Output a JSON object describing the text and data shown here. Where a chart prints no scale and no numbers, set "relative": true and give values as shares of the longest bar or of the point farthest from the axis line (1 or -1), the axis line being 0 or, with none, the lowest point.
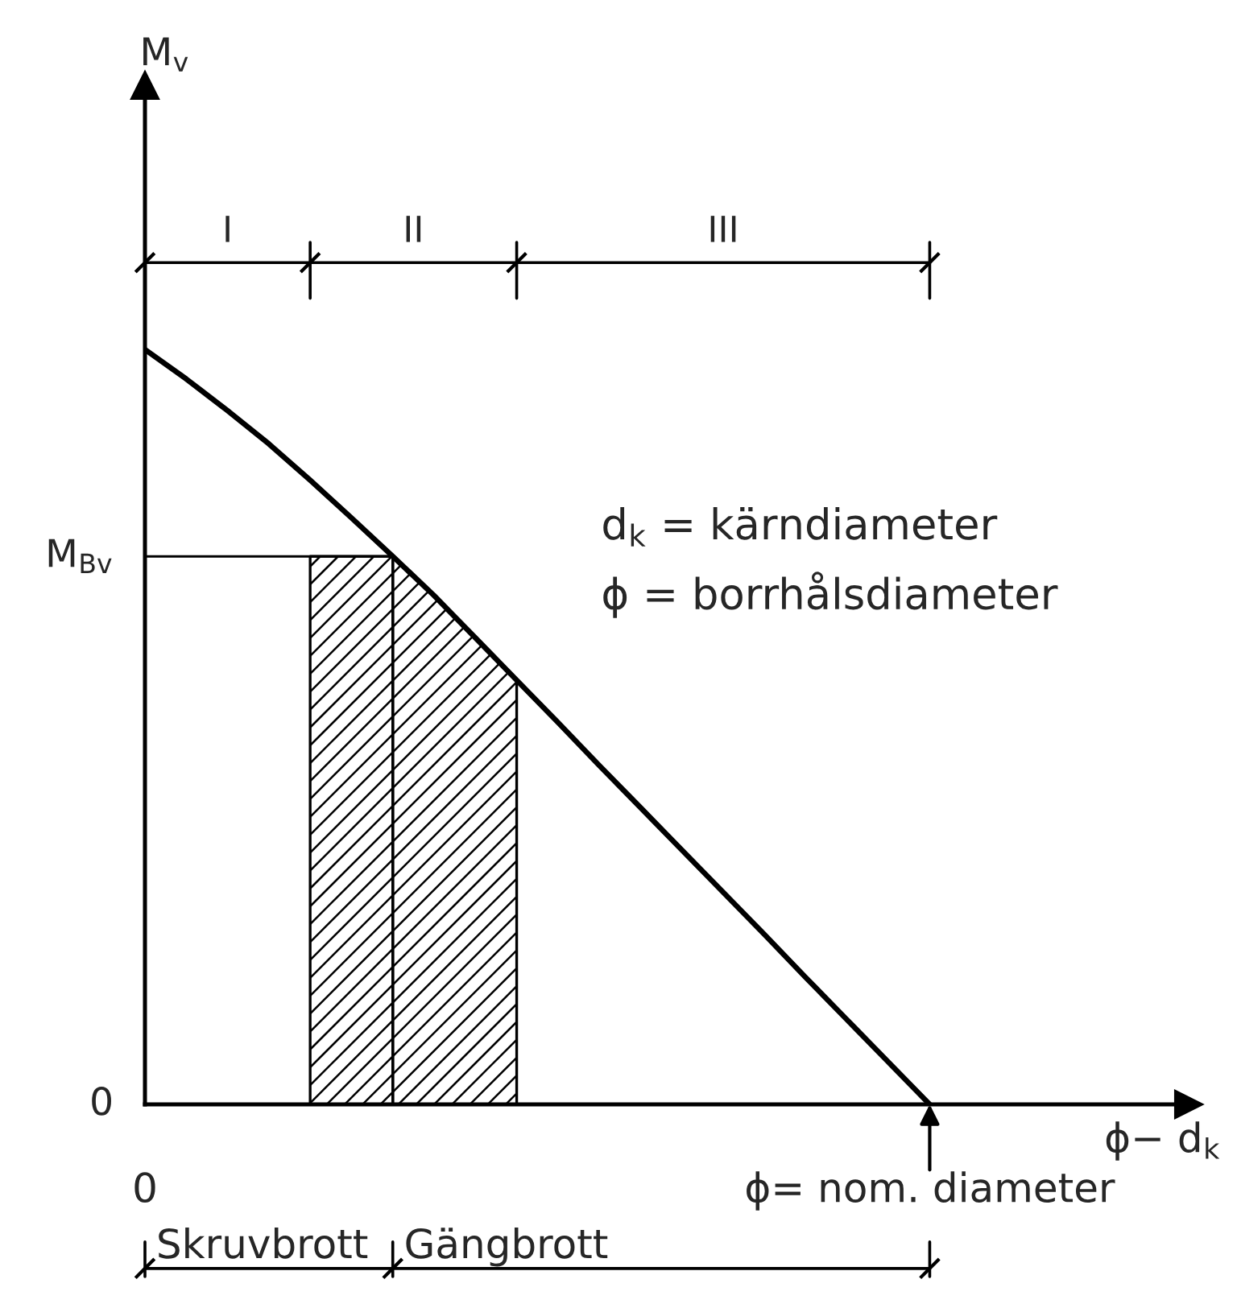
{
  "chart_data": {
    "type": "line",
    "relative": true,
    "xlabel": "ϕ− d$_{k}$",
    "categories": [
      "0",
      null,
      null,
      null,
      null,
      null,
      null,
      null,
      null,
      null,
      null,
      null,
      null,
      null,
      null,
      null,
      null,
      null,
      null,
      "ϕ= nom. diameter"
    ],
    "series": [
      {
        "type": "area",
        "color": "#000000",
        "values": [
          null,
          null,
          null,
          null,
          0.726,
          0.726,
          0.726,
          null,
          null,
          null,
          null,
          null,
          null,
          null,
          null,
          null,
          null,
          null,
          null,
          null
        ]
      },
      {
        "type": "area",
        "color": "#000000",
        "values": [
          null,
          null,
          null,
          null,
          null,
          null,
          0.726,
          0.674,
          0.618,
          0.562,
          null,
          null,
          null,
          null,
          null,
          null,
          null,
          null,
          null,
          null
        ]
      },
      {
        "color": "#000000",
        "values": [
          1,
          0.961,
          0.919,
          0.875,
          0.827,
          0.777,
          0.726,
          0.674,
          0.618,
          0.562,
          0.506,
          0.449,
          0.393,
          0.337,
          0.281,
          0.225,
          0.168,
          0.112,
          0.056,
          0
        ]
      }
    ],
    "ref_lines": [
      {
        "axis": "y",
        "value": 0.726,
        "label": "M$_{Bv}$"
      }
    ],
    "annotations": [
      "I",
      "II",
      "III",
      "Skruvbrott",
      "Gängbrott",
      "0",
      "M$_{v}$",
      "d$_{k}$ = kärndiameter",
      "ϕ = borrhålsdiameter"
    ]
  }
}
